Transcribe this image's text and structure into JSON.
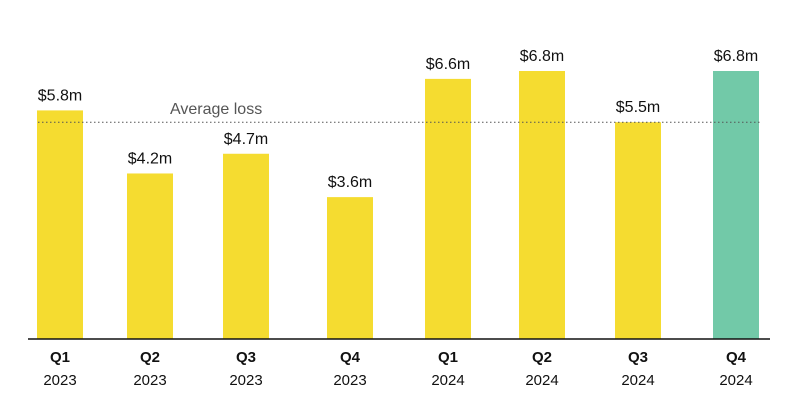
{
  "chart_data": {
    "type": "bar",
    "categories": [
      {
        "quarter": "Q1",
        "year": "2023"
      },
      {
        "quarter": "Q2",
        "year": "2023"
      },
      {
        "quarter": "Q3",
        "year": "2023"
      },
      {
        "quarter": "Q4",
        "year": "2023"
      },
      {
        "quarter": "Q1",
        "year": "2024"
      },
      {
        "quarter": "Q2",
        "year": "2024"
      },
      {
        "quarter": "Q3",
        "year": "2024"
      },
      {
        "quarter": "Q4",
        "year": "2024"
      }
    ],
    "values": [
      5.8,
      4.2,
      4.7,
      3.6,
      6.6,
      6.8,
      5.5,
      6.8
    ],
    "value_labels": [
      "$5.8m",
      "$4.2m",
      "$4.7m",
      "$3.6m",
      "$6.6m",
      "$6.8m",
      "$5.5m",
      "$6.8m"
    ],
    "bar_colors": [
      "#F5DC30",
      "#F5DC30",
      "#F5DC30",
      "#F5DC30",
      "#F5DC30",
      "#F5DC30",
      "#F5DC30",
      "#72C9A8"
    ],
    "average_line": {
      "label": "Average loss",
      "value": 5.5,
      "style": "dotted"
    },
    "ylim": [
      0,
      6.8
    ],
    "grid": false,
    "axis_line": true
  }
}
